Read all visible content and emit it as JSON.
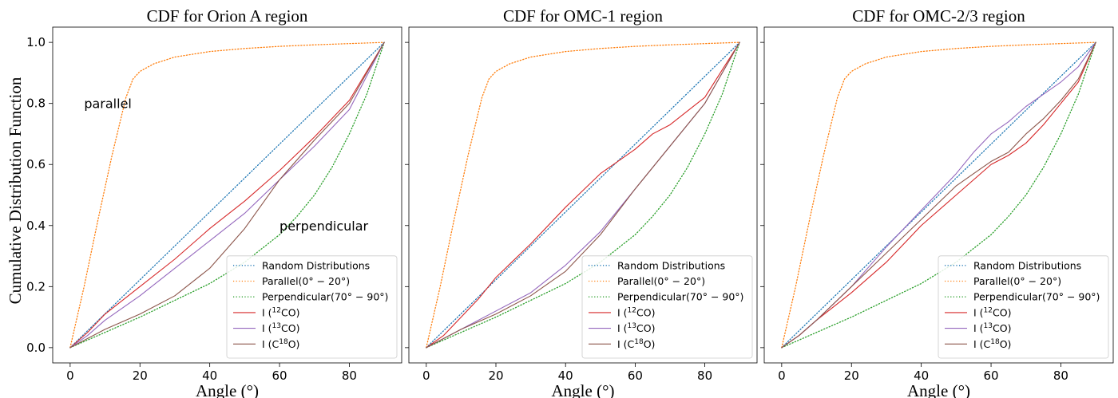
{
  "figure": {
    "ylabel": "Cumulative Distribution Function"
  },
  "chart_data": [
    {
      "type": "line",
      "title": "CDF for Orion A region",
      "xlabel": "Angle (°)",
      "xlim": [
        -5,
        95
      ],
      "ylim": [
        -0.05,
        1.05
      ],
      "xticks": [
        0,
        20,
        40,
        60,
        80
      ],
      "yticks": [
        0.0,
        0.2,
        0.4,
        0.6,
        0.8,
        1.0
      ],
      "ytick_labels": [
        "0.0",
        "0.2",
        "0.4",
        "0.6",
        "0.8",
        "1.0"
      ],
      "legend_position": "lower-right",
      "annotations": [
        {
          "text": "parallel",
          "x": 4,
          "y": 0.8
        },
        {
          "text": "perpendicular",
          "x": 60,
          "y": 0.4
        }
      ],
      "series": [
        {
          "name": "Random Distributions",
          "color": "#1f77b4",
          "style": "dotted",
          "x": [
            0,
            90
          ],
          "y": [
            0,
            1
          ]
        },
        {
          "name": "Parallel(0° − 20°)",
          "color": "#ff7f0e",
          "style": "dotted",
          "x": [
            0,
            4,
            8,
            12,
            16,
            18,
            20,
            24,
            30,
            40,
            50,
            60,
            70,
            80,
            90
          ],
          "y": [
            0,
            0.2,
            0.42,
            0.63,
            0.82,
            0.88,
            0.905,
            0.93,
            0.952,
            0.97,
            0.98,
            0.987,
            0.992,
            0.996,
            1
          ]
        },
        {
          "name": "Perpendicular(70° − 90°)",
          "color": "#2ca02c",
          "style": "dotted",
          "x": [
            0,
            10,
            20,
            30,
            40,
            50,
            60,
            65,
            70,
            75,
            80,
            85,
            90
          ],
          "y": [
            0,
            0.05,
            0.1,
            0.155,
            0.21,
            0.28,
            0.37,
            0.43,
            0.5,
            0.59,
            0.7,
            0.83,
            1
          ]
        },
        {
          "name": "I (¹²CO)",
          "color": "#d62728",
          "style": "solid",
          "x": [
            0,
            5,
            10,
            20,
            30,
            40,
            50,
            60,
            70,
            80,
            90
          ],
          "y": [
            0,
            0.05,
            0.11,
            0.2,
            0.29,
            0.39,
            0.48,
            0.58,
            0.69,
            0.81,
            1
          ]
        },
        {
          "name": "I (¹³CO)",
          "color": "#9467bd",
          "style": "solid",
          "x": [
            0,
            5,
            10,
            20,
            30,
            40,
            50,
            60,
            70,
            80,
            90
          ],
          "y": [
            0,
            0.04,
            0.09,
            0.17,
            0.26,
            0.35,
            0.44,
            0.55,
            0.66,
            0.78,
            1
          ]
        },
        {
          "name": "I (C¹⁸O)",
          "color": "#8c564b",
          "style": "solid",
          "x": [
            0,
            5,
            10,
            20,
            30,
            40,
            50,
            60,
            70,
            80,
            90
          ],
          "y": [
            0,
            0.03,
            0.06,
            0.11,
            0.17,
            0.26,
            0.39,
            0.55,
            0.68,
            0.8,
            1
          ]
        }
      ]
    },
    {
      "type": "line",
      "title": "CDF for OMC-1 region",
      "xlabel": "Angle (°)",
      "xlim": [
        -5,
        95
      ],
      "ylim": [
        -0.05,
        1.05
      ],
      "xticks": [
        0,
        20,
        40,
        60,
        80
      ],
      "yticks": [
        0.0,
        0.2,
        0.4,
        0.6,
        0.8,
        1.0
      ],
      "ytick_labels": [],
      "legend_position": "lower-right",
      "annotations": [],
      "series": [
        {
          "name": "Random Distributions",
          "color": "#1f77b4",
          "style": "dotted",
          "x": [
            0,
            90
          ],
          "y": [
            0,
            1
          ]
        },
        {
          "name": "Parallel(0° − 20°)",
          "color": "#ff7f0e",
          "style": "dotted",
          "x": [
            0,
            4,
            8,
            12,
            16,
            18,
            20,
            24,
            30,
            40,
            50,
            60,
            70,
            80,
            90
          ],
          "y": [
            0,
            0.2,
            0.42,
            0.63,
            0.82,
            0.88,
            0.905,
            0.93,
            0.952,
            0.97,
            0.98,
            0.987,
            0.992,
            0.996,
            1
          ]
        },
        {
          "name": "Perpendicular(70° − 90°)",
          "color": "#2ca02c",
          "style": "dotted",
          "x": [
            0,
            10,
            20,
            30,
            40,
            50,
            60,
            65,
            70,
            75,
            80,
            85,
            90
          ],
          "y": [
            0,
            0.05,
            0.1,
            0.155,
            0.21,
            0.28,
            0.37,
            0.43,
            0.5,
            0.59,
            0.7,
            0.83,
            1
          ]
        },
        {
          "name": "I (¹²CO)",
          "color": "#d62728",
          "style": "solid",
          "x": [
            0,
            5,
            10,
            15,
            20,
            30,
            40,
            50,
            55,
            60,
            65,
            70,
            80,
            90
          ],
          "y": [
            0,
            0.04,
            0.1,
            0.16,
            0.23,
            0.34,
            0.46,
            0.57,
            0.61,
            0.65,
            0.7,
            0.73,
            0.82,
            1
          ]
        },
        {
          "name": "I (¹³CO)",
          "color": "#9467bd",
          "style": "solid",
          "x": [
            0,
            5,
            10,
            20,
            30,
            40,
            50,
            60,
            70,
            80,
            90
          ],
          "y": [
            0,
            0.03,
            0.06,
            0.12,
            0.18,
            0.27,
            0.38,
            0.52,
            0.66,
            0.8,
            1
          ]
        },
        {
          "name": "I (C¹⁸O)",
          "color": "#8c564b",
          "style": "solid",
          "x": [
            0,
            5,
            10,
            20,
            30,
            40,
            50,
            60,
            70,
            80,
            90
          ],
          "y": [
            0,
            0.03,
            0.06,
            0.11,
            0.17,
            0.25,
            0.37,
            0.52,
            0.66,
            0.8,
            1
          ]
        }
      ]
    },
    {
      "type": "line",
      "title": "CDF for OMC-2/3 region",
      "xlabel": "Angle (°)",
      "xlim": [
        -5,
        95
      ],
      "ylim": [
        -0.05,
        1.05
      ],
      "xticks": [
        0,
        20,
        40,
        60,
        80
      ],
      "yticks": [
        0.0,
        0.2,
        0.4,
        0.6,
        0.8,
        1.0
      ],
      "ytick_labels": [],
      "legend_position": "lower-right",
      "annotations": [],
      "series": [
        {
          "name": "Random Distributions",
          "color": "#1f77b4",
          "style": "dotted",
          "x": [
            0,
            90
          ],
          "y": [
            0,
            1
          ]
        },
        {
          "name": "Parallel(0° − 20°)",
          "color": "#ff7f0e",
          "style": "dotted",
          "x": [
            0,
            4,
            8,
            12,
            16,
            18,
            20,
            24,
            30,
            40,
            50,
            60,
            70,
            80,
            90
          ],
          "y": [
            0,
            0.2,
            0.42,
            0.63,
            0.82,
            0.88,
            0.905,
            0.93,
            0.952,
            0.97,
            0.98,
            0.987,
            0.992,
            0.996,
            1
          ]
        },
        {
          "name": "Perpendicular(70° − 90°)",
          "color": "#2ca02c",
          "style": "dotted",
          "x": [
            0,
            10,
            20,
            30,
            40,
            50,
            60,
            65,
            70,
            75,
            80,
            85,
            90
          ],
          "y": [
            0,
            0.05,
            0.1,
            0.155,
            0.21,
            0.28,
            0.37,
            0.43,
            0.5,
            0.59,
            0.7,
            0.83,
            1
          ]
        },
        {
          "name": "I (¹²CO)",
          "color": "#d62728",
          "style": "solid",
          "x": [
            0,
            5,
            10,
            20,
            30,
            40,
            50,
            55,
            60,
            65,
            70,
            75,
            80,
            85,
            90
          ],
          "y": [
            0,
            0.04,
            0.09,
            0.18,
            0.28,
            0.4,
            0.5,
            0.55,
            0.6,
            0.63,
            0.67,
            0.73,
            0.8,
            0.87,
            1
          ]
        },
        {
          "name": "I (¹³CO)",
          "color": "#9467bd",
          "style": "solid",
          "x": [
            0,
            5,
            10,
            20,
            30,
            40,
            50,
            55,
            60,
            65,
            70,
            75,
            80,
            85,
            90
          ],
          "y": [
            0,
            0.04,
            0.09,
            0.2,
            0.33,
            0.45,
            0.57,
            0.64,
            0.7,
            0.74,
            0.79,
            0.83,
            0.87,
            0.92,
            1
          ]
        },
        {
          "name": "I (C¹⁸O)",
          "color": "#8c564b",
          "style": "solid",
          "x": [
            0,
            5,
            10,
            20,
            30,
            40,
            50,
            55,
            60,
            65,
            70,
            75,
            80,
            85,
            90
          ],
          "y": [
            0,
            0.04,
            0.09,
            0.2,
            0.31,
            0.42,
            0.53,
            0.57,
            0.61,
            0.64,
            0.7,
            0.75,
            0.81,
            0.88,
            1
          ]
        }
      ]
    }
  ]
}
